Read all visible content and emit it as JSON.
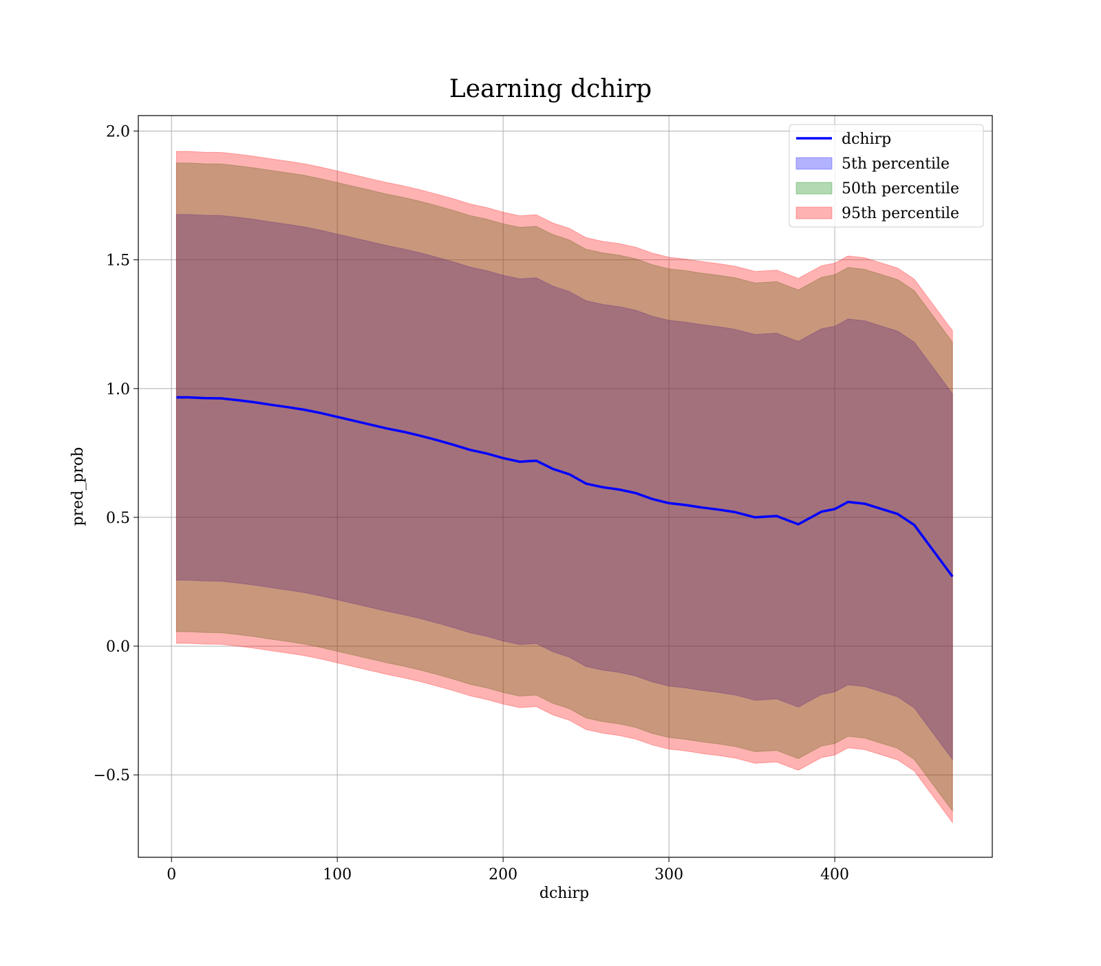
{
  "chart_data": {
    "type": "line",
    "title": "Learning dchirp",
    "xlabel": "dchirp",
    "ylabel": "pred_prob",
    "xlim": [
      -20,
      495
    ],
    "ylim": [
      -0.82,
      2.06
    ],
    "xticks": [
      0,
      100,
      200,
      300,
      400
    ],
    "xtick_labels": [
      "0",
      "100",
      "200",
      "300",
      "400"
    ],
    "yticks": [
      -0.5,
      0.0,
      0.5,
      1.0,
      1.5,
      2.0
    ],
    "ytick_labels": [
      "−0.5",
      "0.0",
      "0.5",
      "1.0",
      "1.5",
      "2.0"
    ],
    "grid": true,
    "legend_position": "top-right",
    "legend": [
      {
        "label": "dchirp",
        "kind": "line",
        "color": "#0000ff"
      },
      {
        "label": "5th percentile",
        "kind": "patch",
        "color": "#0000ff"
      },
      {
        "label": "50th percentile",
        "kind": "patch",
        "color": "#008000"
      },
      {
        "label": "95th percentile",
        "kind": "patch",
        "color": "#ff0000"
      }
    ],
    "x": [
      3,
      10,
      20,
      30,
      40,
      50,
      60,
      70,
      80,
      90,
      100,
      110,
      120,
      130,
      140,
      150,
      160,
      170,
      180,
      190,
      200,
      210,
      220,
      230,
      240,
      250,
      260,
      270,
      280,
      290,
      300,
      310,
      320,
      330,
      340,
      352,
      365,
      378,
      392,
      400,
      408,
      418,
      428,
      438,
      448,
      471
    ],
    "series": [
      {
        "name": "dchirp",
        "style": "line",
        "color": "#0000ff",
        "values": [
          0.966,
          0.966,
          0.963,
          0.962,
          0.955,
          0.947,
          0.937,
          0.928,
          0.918,
          0.905,
          0.89,
          0.875,
          0.86,
          0.845,
          0.832,
          0.817,
          0.8,
          0.782,
          0.762,
          0.748,
          0.73,
          0.716,
          0.72,
          0.688,
          0.667,
          0.631,
          0.617,
          0.608,
          0.594,
          0.571,
          0.555,
          0.548,
          0.538,
          0.53,
          0.52,
          0.5,
          0.505,
          0.473,
          0.522,
          0.532,
          0.56,
          0.553,
          0.533,
          0.513,
          0.47,
          0.27
        ]
      },
      {
        "name": "5th percentile",
        "style": "band",
        "color": "#0000ff",
        "lower": [
          0.256,
          0.256,
          0.253,
          0.252,
          0.245,
          0.237,
          0.227,
          0.218,
          0.208,
          0.195,
          0.18,
          0.165,
          0.15,
          0.135,
          0.122,
          0.107,
          0.09,
          0.072,
          0.052,
          0.038,
          0.02,
          0.006,
          0.01,
          -0.022,
          -0.043,
          -0.079,
          -0.093,
          -0.102,
          -0.116,
          -0.139,
          -0.155,
          -0.162,
          -0.172,
          -0.18,
          -0.19,
          -0.21,
          -0.205,
          -0.237,
          -0.188,
          -0.178,
          -0.15,
          -0.157,
          -0.177,
          -0.197,
          -0.24,
          -0.44
        ],
        "upper": [
          1.676,
          1.676,
          1.673,
          1.672,
          1.665,
          1.657,
          1.647,
          1.638,
          1.628,
          1.615,
          1.6,
          1.585,
          1.57,
          1.555,
          1.542,
          1.527,
          1.51,
          1.492,
          1.472,
          1.458,
          1.44,
          1.426,
          1.43,
          1.398,
          1.377,
          1.341,
          1.327,
          1.318,
          1.304,
          1.281,
          1.265,
          1.258,
          1.248,
          1.24,
          1.23,
          1.21,
          1.215,
          1.183,
          1.232,
          1.242,
          1.27,
          1.263,
          1.243,
          1.223,
          1.18,
          0.98
        ]
      },
      {
        "name": "50th percentile",
        "style": "band",
        "color": "#008000",
        "lower": [
          0.056,
          0.056,
          0.053,
          0.052,
          0.045,
          0.037,
          0.027,
          0.018,
          0.008,
          -0.005,
          -0.02,
          -0.035,
          -0.05,
          -0.065,
          -0.078,
          -0.093,
          -0.11,
          -0.128,
          -0.148,
          -0.162,
          -0.18,
          -0.194,
          -0.19,
          -0.222,
          -0.243,
          -0.279,
          -0.293,
          -0.302,
          -0.316,
          -0.339,
          -0.355,
          -0.362,
          -0.372,
          -0.38,
          -0.39,
          -0.41,
          -0.405,
          -0.437,
          -0.388,
          -0.378,
          -0.35,
          -0.357,
          -0.377,
          -0.397,
          -0.44,
          -0.64
        ],
        "upper": [
          1.876,
          1.876,
          1.873,
          1.872,
          1.865,
          1.857,
          1.847,
          1.838,
          1.828,
          1.815,
          1.8,
          1.785,
          1.77,
          1.755,
          1.742,
          1.727,
          1.71,
          1.692,
          1.672,
          1.658,
          1.64,
          1.626,
          1.63,
          1.598,
          1.577,
          1.541,
          1.527,
          1.518,
          1.504,
          1.481,
          1.465,
          1.458,
          1.448,
          1.44,
          1.43,
          1.41,
          1.415,
          1.383,
          1.432,
          1.442,
          1.47,
          1.463,
          1.443,
          1.423,
          1.38,
          1.18
        ]
      },
      {
        "name": "95th percentile",
        "style": "band",
        "color": "#ff0000",
        "lower": [
          0.011,
          0.011,
          0.008,
          0.007,
          0.0,
          -0.008,
          -0.018,
          -0.027,
          -0.037,
          -0.05,
          -0.065,
          -0.08,
          -0.095,
          -0.11,
          -0.123,
          -0.138,
          -0.155,
          -0.173,
          -0.193,
          -0.207,
          -0.225,
          -0.239,
          -0.235,
          -0.267,
          -0.288,
          -0.324,
          -0.338,
          -0.347,
          -0.361,
          -0.384,
          -0.4,
          -0.407,
          -0.417,
          -0.425,
          -0.435,
          -0.455,
          -0.45,
          -0.482,
          -0.433,
          -0.423,
          -0.395,
          -0.402,
          -0.422,
          -0.442,
          -0.485,
          -0.685
        ],
        "upper": [
          1.921,
          1.921,
          1.918,
          1.917,
          1.91,
          1.902,
          1.892,
          1.883,
          1.873,
          1.86,
          1.845,
          1.83,
          1.815,
          1.8,
          1.787,
          1.772,
          1.755,
          1.737,
          1.717,
          1.703,
          1.685,
          1.671,
          1.675,
          1.643,
          1.622,
          1.586,
          1.572,
          1.563,
          1.549,
          1.526,
          1.51,
          1.503,
          1.493,
          1.485,
          1.475,
          1.455,
          1.46,
          1.428,
          1.477,
          1.487,
          1.515,
          1.508,
          1.488,
          1.468,
          1.425,
          1.225
        ]
      }
    ]
  }
}
